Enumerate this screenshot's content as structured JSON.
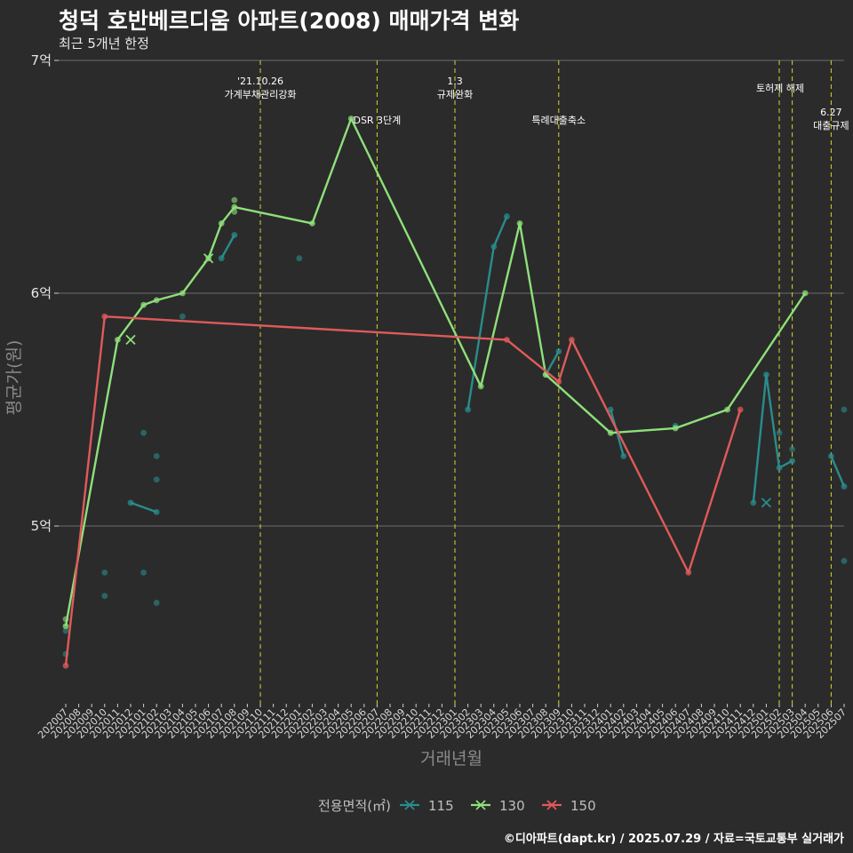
{
  "header": {
    "title": "청덕 호반베르디움 아파트(2008) 매매가격 변화",
    "subtitle": "최근 5개년 한정"
  },
  "caption": "©디아파트(dapt.kr) / 2025.07.29 / 자료=국토교통부 실거래가",
  "colors": {
    "115": "#2a8c8c",
    "130": "#8ee07a",
    "150": "#e05a5a",
    "event": "#d6d630",
    "background": "#2b2b2b",
    "grid": "#6e6e6e"
  },
  "chart_data": {
    "type": "line",
    "xlabel": "거래년월",
    "ylabel": "평균가(원)",
    "ylim": [
      4.3,
      7.0
    ],
    "yticks": [
      {
        "value": 5,
        "label": "5억"
      },
      {
        "value": 6,
        "label": "6억"
      },
      {
        "value": 7,
        "label": "7억"
      }
    ],
    "categories": [
      "202007",
      "202008",
      "202009",
      "202010",
      "202011",
      "202012",
      "202101",
      "202102",
      "202103",
      "202104",
      "202105",
      "202106",
      "202107",
      "202108",
      "202109",
      "202110",
      "202111",
      "202112",
      "202201",
      "202202",
      "202203",
      "202204",
      "202205",
      "202206",
      "202207",
      "202208",
      "202209",
      "202210",
      "202211",
      "202212",
      "202301",
      "202302",
      "202303",
      "202304",
      "202305",
      "202306",
      "202307",
      "202308",
      "202309",
      "202310",
      "202311",
      "202312",
      "202401",
      "202402",
      "202403",
      "202404",
      "202405",
      "202406",
      "202407",
      "202408",
      "202409",
      "202410",
      "202411",
      "202412",
      "202501",
      "202502",
      "202503",
      "202504",
      "202505",
      "202506",
      "202507"
    ],
    "legend": {
      "title": "전용면적(㎡)",
      "position": "bottom"
    },
    "series": [
      {
        "name": "115",
        "line": [
          [
            "202012",
            5.1
          ],
          [
            "202102",
            5.06
          ],
          null,
          [
            "202107",
            6.15
          ],
          [
            "202108",
            6.25
          ],
          null,
          [
            "202302",
            5.5
          ],
          [
            "202304",
            6.2
          ],
          [
            "202305",
            6.33
          ],
          null,
          [
            "202308",
            5.65
          ],
          [
            "202309",
            5.75
          ],
          null,
          [
            "202401",
            5.5
          ],
          [
            "202402",
            5.3
          ],
          null,
          [
            "202406",
            5.43
          ],
          null,
          [
            "202412",
            5.1
          ],
          [
            "202501",
            5.65
          ],
          [
            "202502",
            5.25
          ],
          [
            "202503",
            5.28
          ],
          null,
          [
            "202506",
            5.3
          ],
          [
            "202507",
            5.17
          ]
        ],
        "points": [
          [
            "202007",
            4.45
          ],
          [
            "202007",
            4.55
          ],
          [
            "202010",
            4.8
          ],
          [
            "202010",
            4.7
          ],
          [
            "202101",
            5.4
          ],
          [
            "202101",
            4.8
          ],
          [
            "202102",
            5.3
          ],
          [
            "202102",
            5.2
          ],
          [
            "202102",
            4.67
          ],
          [
            "202104",
            5.9
          ],
          [
            "202201",
            6.15
          ],
          [
            "202502",
            5.4
          ],
          [
            "202503",
            5.33
          ],
          [
            "202507",
            5.5
          ],
          [
            "202507",
            4.85
          ]
        ],
        "crosses": [
          [
            "202501",
            5.1
          ]
        ]
      },
      {
        "name": "130",
        "line": [
          [
            "202007",
            4.57
          ],
          [
            "202011",
            5.8
          ],
          [
            "202101",
            5.95
          ],
          [
            "202102",
            5.97
          ],
          [
            "202104",
            6.0
          ],
          [
            "202106",
            6.15
          ],
          [
            "202107",
            6.3
          ],
          [
            "202108",
            6.37
          ],
          [
            "202202",
            6.3
          ],
          [
            "202205",
            6.75
          ],
          [
            "202303",
            5.6
          ],
          [
            "202306",
            6.3
          ],
          [
            "202308",
            5.65
          ],
          [
            "202401",
            5.4
          ],
          [
            "202406",
            5.42
          ],
          [
            "202410",
            5.5
          ],
          [
            "202504",
            6.0
          ]
        ],
        "points": [
          [
            "202007",
            4.6
          ],
          [
            "202108",
            6.4
          ],
          [
            "202108",
            6.35
          ]
        ],
        "crosses": [
          [
            "202012",
            5.8
          ],
          [
            "202106",
            6.15
          ]
        ]
      },
      {
        "name": "150",
        "line": [
          [
            "202007",
            4.4
          ],
          [
            "202010",
            5.9
          ],
          [
            "202305",
            5.8
          ],
          [
            "202309",
            5.62
          ],
          [
            "202310",
            5.8
          ],
          [
            "202407",
            4.8
          ],
          [
            "202411",
            5.5
          ]
        ],
        "points": [],
        "crosses": []
      }
    ],
    "events": [
      {
        "x": "202110",
        "lines": [
          "'21.10.26",
          "가계부채관리강화"
        ],
        "level": 0
      },
      {
        "x": "202207",
        "lines": [
          "DSR 3단계"
        ],
        "level": 1,
        "side": "left"
      },
      {
        "x": "202301",
        "lines": [
          "1.3",
          "규제완화"
        ],
        "level": 0
      },
      {
        "x": "202309",
        "lines": [
          "특례대출축소"
        ],
        "level": 1
      },
      {
        "x": "202502",
        "lines": [
          "토허제 해제"
        ],
        "level": 0.5,
        "at": "202502.5"
      },
      {
        "x": "202503",
        "lines": [],
        "level": 0
      },
      {
        "x": "202506",
        "lines": [
          "6.27",
          "대출규제"
        ],
        "level": 1.4
      }
    ]
  }
}
